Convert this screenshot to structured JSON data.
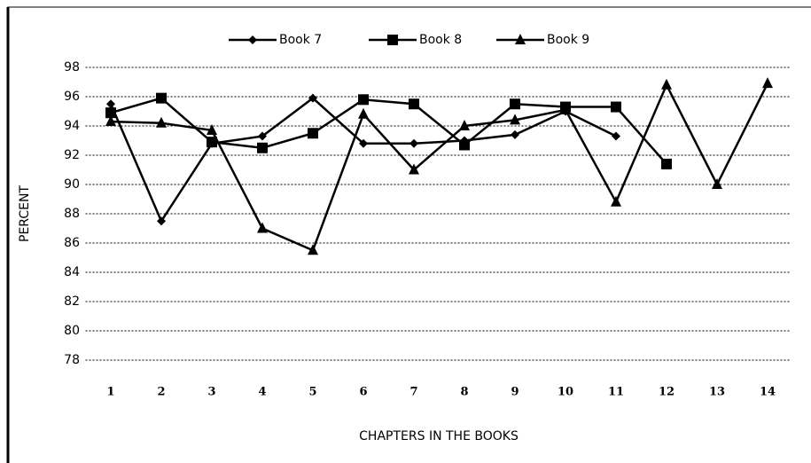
{
  "chart_data": {
    "type": "line",
    "xlabel": "CHAPTERS IN THE BOOKS",
    "ylabel": "PERCENT",
    "categories": [
      "1",
      "2",
      "3",
      "4",
      "5",
      "6",
      "7",
      "8",
      "9",
      "10",
      "11",
      "12",
      "13",
      "14"
    ],
    "series": [
      {
        "name": "Book 7",
        "color": "#000000",
        "marker": "diamond",
        "values": [
          95.5,
          87.5,
          92.8,
          93.3,
          95.9,
          92.8,
          92.8,
          93.0,
          93.4,
          95.0,
          93.3,
          null,
          null,
          null
        ]
      },
      {
        "name": "Book 8",
        "color": "#000000",
        "marker": "square",
        "values": [
          94.9,
          95.9,
          92.9,
          92.5,
          93.5,
          95.8,
          95.5,
          92.7,
          95.5,
          95.3,
          95.3,
          91.4,
          null,
          null
        ]
      },
      {
        "name": "Book 9",
        "color": "#000000",
        "marker": "triangle",
        "values": [
          94.3,
          94.2,
          93.7,
          87.0,
          85.5,
          94.8,
          91.0,
          94.0,
          94.4,
          95.1,
          88.8,
          96.8,
          90.0,
          96.9
        ]
      }
    ],
    "ylim": [
      78,
      98
    ],
    "yticks": [
      78,
      80,
      82,
      84,
      86,
      88,
      90,
      92,
      94,
      96,
      98
    ],
    "grid": true,
    "legend": "top"
  }
}
